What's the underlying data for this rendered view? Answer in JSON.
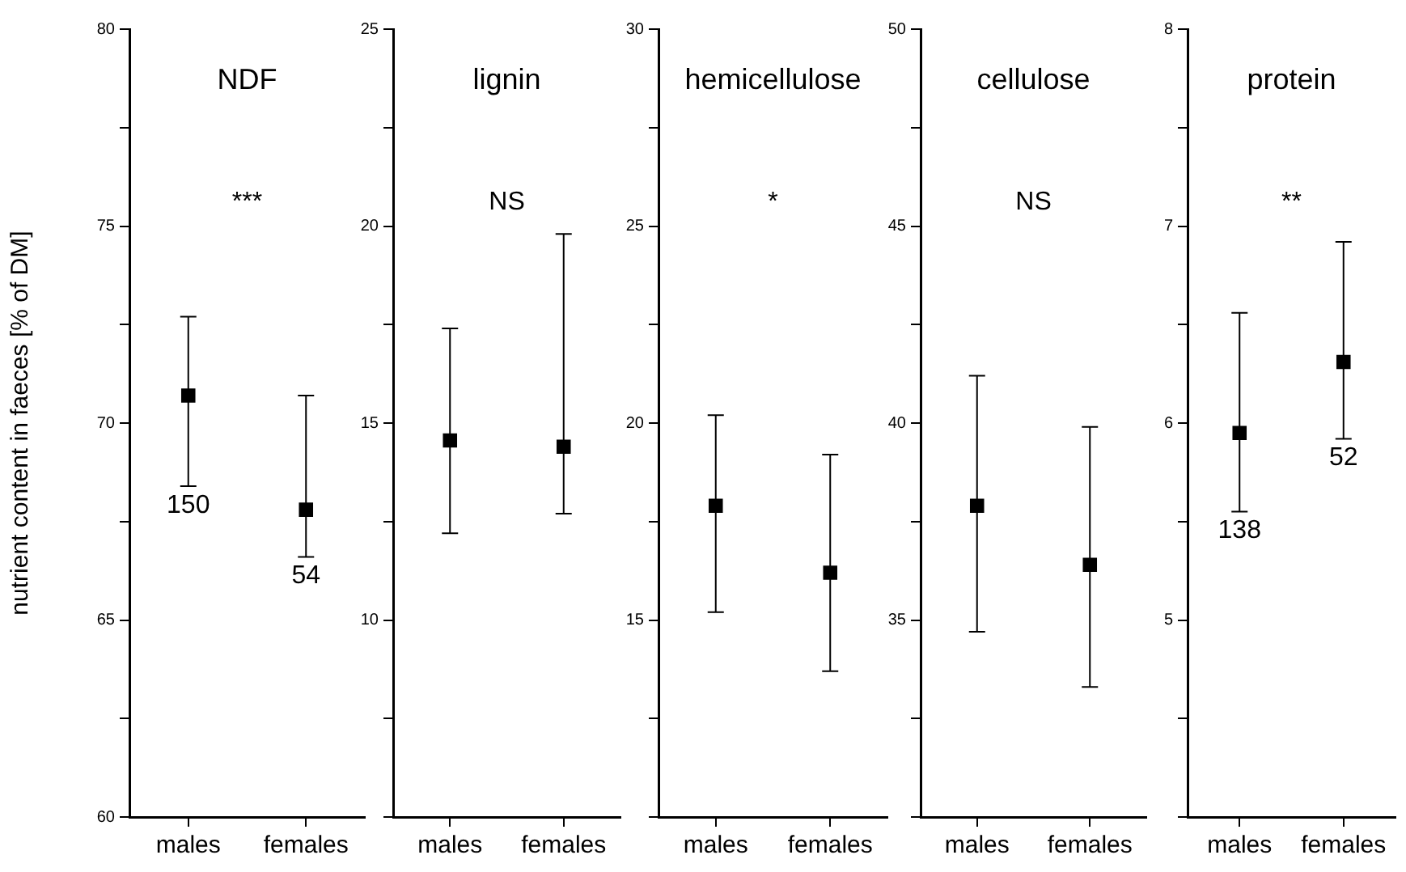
{
  "chart_data": [
    {
      "type": "scatter",
      "title": "NDF",
      "ylabel": "nutrient content in faeces [% of DM]",
      "categories": [
        "males",
        "females"
      ],
      "values": [
        70.7,
        67.8
      ],
      "errors": [
        [
          68.4,
          72.7
        ],
        [
          66.6,
          70.7
        ]
      ],
      "color": "#000000",
      "marker": "square",
      "ylim": [
        60,
        80
      ],
      "yticks": [
        60,
        {
          "value": 62.5,
          "label": null
        },
        65,
        {
          "value": 67.5,
          "label": null
        },
        70,
        {
          "value": 72.5,
          "label": null
        },
        75,
        {
          "value": 77.5,
          "label": null
        },
        80
      ],
      "annotations": [
        "***",
        "150",
        "54"
      ]
    },
    {
      "type": "scatter",
      "title": "lignin",
      "categories": [
        "males",
        "females"
      ],
      "values": [
        14.56,
        14.4
      ],
      "errors": [
        [
          12.2,
          17.4
        ],
        [
          12.7,
          19.8
        ]
      ],
      "color": "#000000",
      "marker": "square",
      "ylim": [
        5,
        25
      ],
      "yticks": [
        {
          "value": 5,
          "label": null
        },
        {
          "value": 7.5,
          "label": null
        },
        10,
        {
          "value": 12.5,
          "label": null
        },
        15,
        {
          "value": 17.5,
          "label": null
        },
        20,
        {
          "value": 22.5,
          "label": null
        },
        25
      ],
      "annotations": [
        "NS"
      ]
    },
    {
      "type": "scatter",
      "title": "hemicellulose",
      "categories": [
        "males",
        "females"
      ],
      "values": [
        17.9,
        16.2
      ],
      "errors": [
        [
          15.2,
          20.2
        ],
        [
          13.7,
          19.2
        ]
      ],
      "color": "#000000",
      "marker": "square",
      "ylim": [
        10,
        30
      ],
      "yticks": [
        {
          "value": 10,
          "label": null
        },
        {
          "value": 12.5,
          "label": null
        },
        15,
        {
          "value": 17.5,
          "label": null
        },
        20,
        {
          "value": 22.5,
          "label": null
        },
        25,
        {
          "value": 27.5,
          "label": null
        },
        30
      ],
      "annotations": [
        "*"
      ]
    },
    {
      "type": "scatter",
      "title": "cellulose",
      "categories": [
        "males",
        "females"
      ],
      "values": [
        37.9,
        36.4
      ],
      "errors": [
        [
          34.7,
          41.2
        ],
        [
          33.3,
          39.9
        ]
      ],
      "color": "#000000",
      "marker": "square",
      "ylim": [
        30,
        50
      ],
      "yticks": [
        {
          "value": 30,
          "label": null
        },
        {
          "value": 32.5,
          "label": null
        },
        35,
        {
          "value": 37.5,
          "label": null
        },
        40,
        {
          "value": 42.5,
          "label": null
        },
        45,
        {
          "value": 47.5,
          "label": null
        },
        50
      ],
      "annotations": [
        "NS"
      ]
    },
    {
      "type": "scatter",
      "title": "protein",
      "categories": [
        "males",
        "females"
      ],
      "values": [
        5.95,
        6.31
      ],
      "errors": [
        [
          5.55,
          6.56
        ],
        [
          5.92,
          6.92
        ]
      ],
      "color": "#000000",
      "marker": "square",
      "ylim": [
        4,
        8
      ],
      "yticks": [
        {
          "value": 4,
          "label": null
        },
        {
          "value": 4.5,
          "label": null
        },
        5,
        {
          "value": 5.5,
          "label": null
        },
        6,
        {
          "value": 6.5,
          "label": null
        },
        7,
        {
          "value": 7.5,
          "label": null
        },
        8
      ],
      "annotations": [
        "**",
        "138",
        "52"
      ]
    }
  ]
}
